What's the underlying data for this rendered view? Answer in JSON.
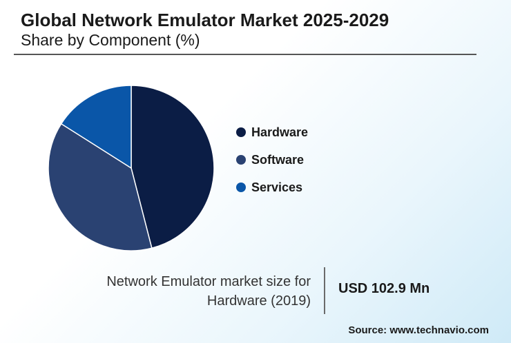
{
  "header": {
    "title": "Global Network Emulator Market 2025-2029",
    "subtitle": "Share by Component (%)"
  },
  "chart_data": {
    "type": "pie",
    "categories": [
      "Hardware",
      "Software",
      "Services"
    ],
    "values": [
      46,
      38,
      16
    ],
    "colors": [
      "#0b1d45",
      "#2a4272",
      "#0a56a8"
    ],
    "legend_placement": "right"
  },
  "legend": {
    "items": [
      {
        "label": "Hardware",
        "color": "#0b1d45"
      },
      {
        "label": "Software",
        "color": "#2a4272"
      },
      {
        "label": "Services",
        "color": "#0a56a8"
      }
    ]
  },
  "stat": {
    "label_line1": "Network Emulator market size for",
    "label_line2": "Hardware (2019)",
    "value": "USD 102.9 Mn"
  },
  "footer": {
    "source": "Source: www.technavio.com"
  }
}
